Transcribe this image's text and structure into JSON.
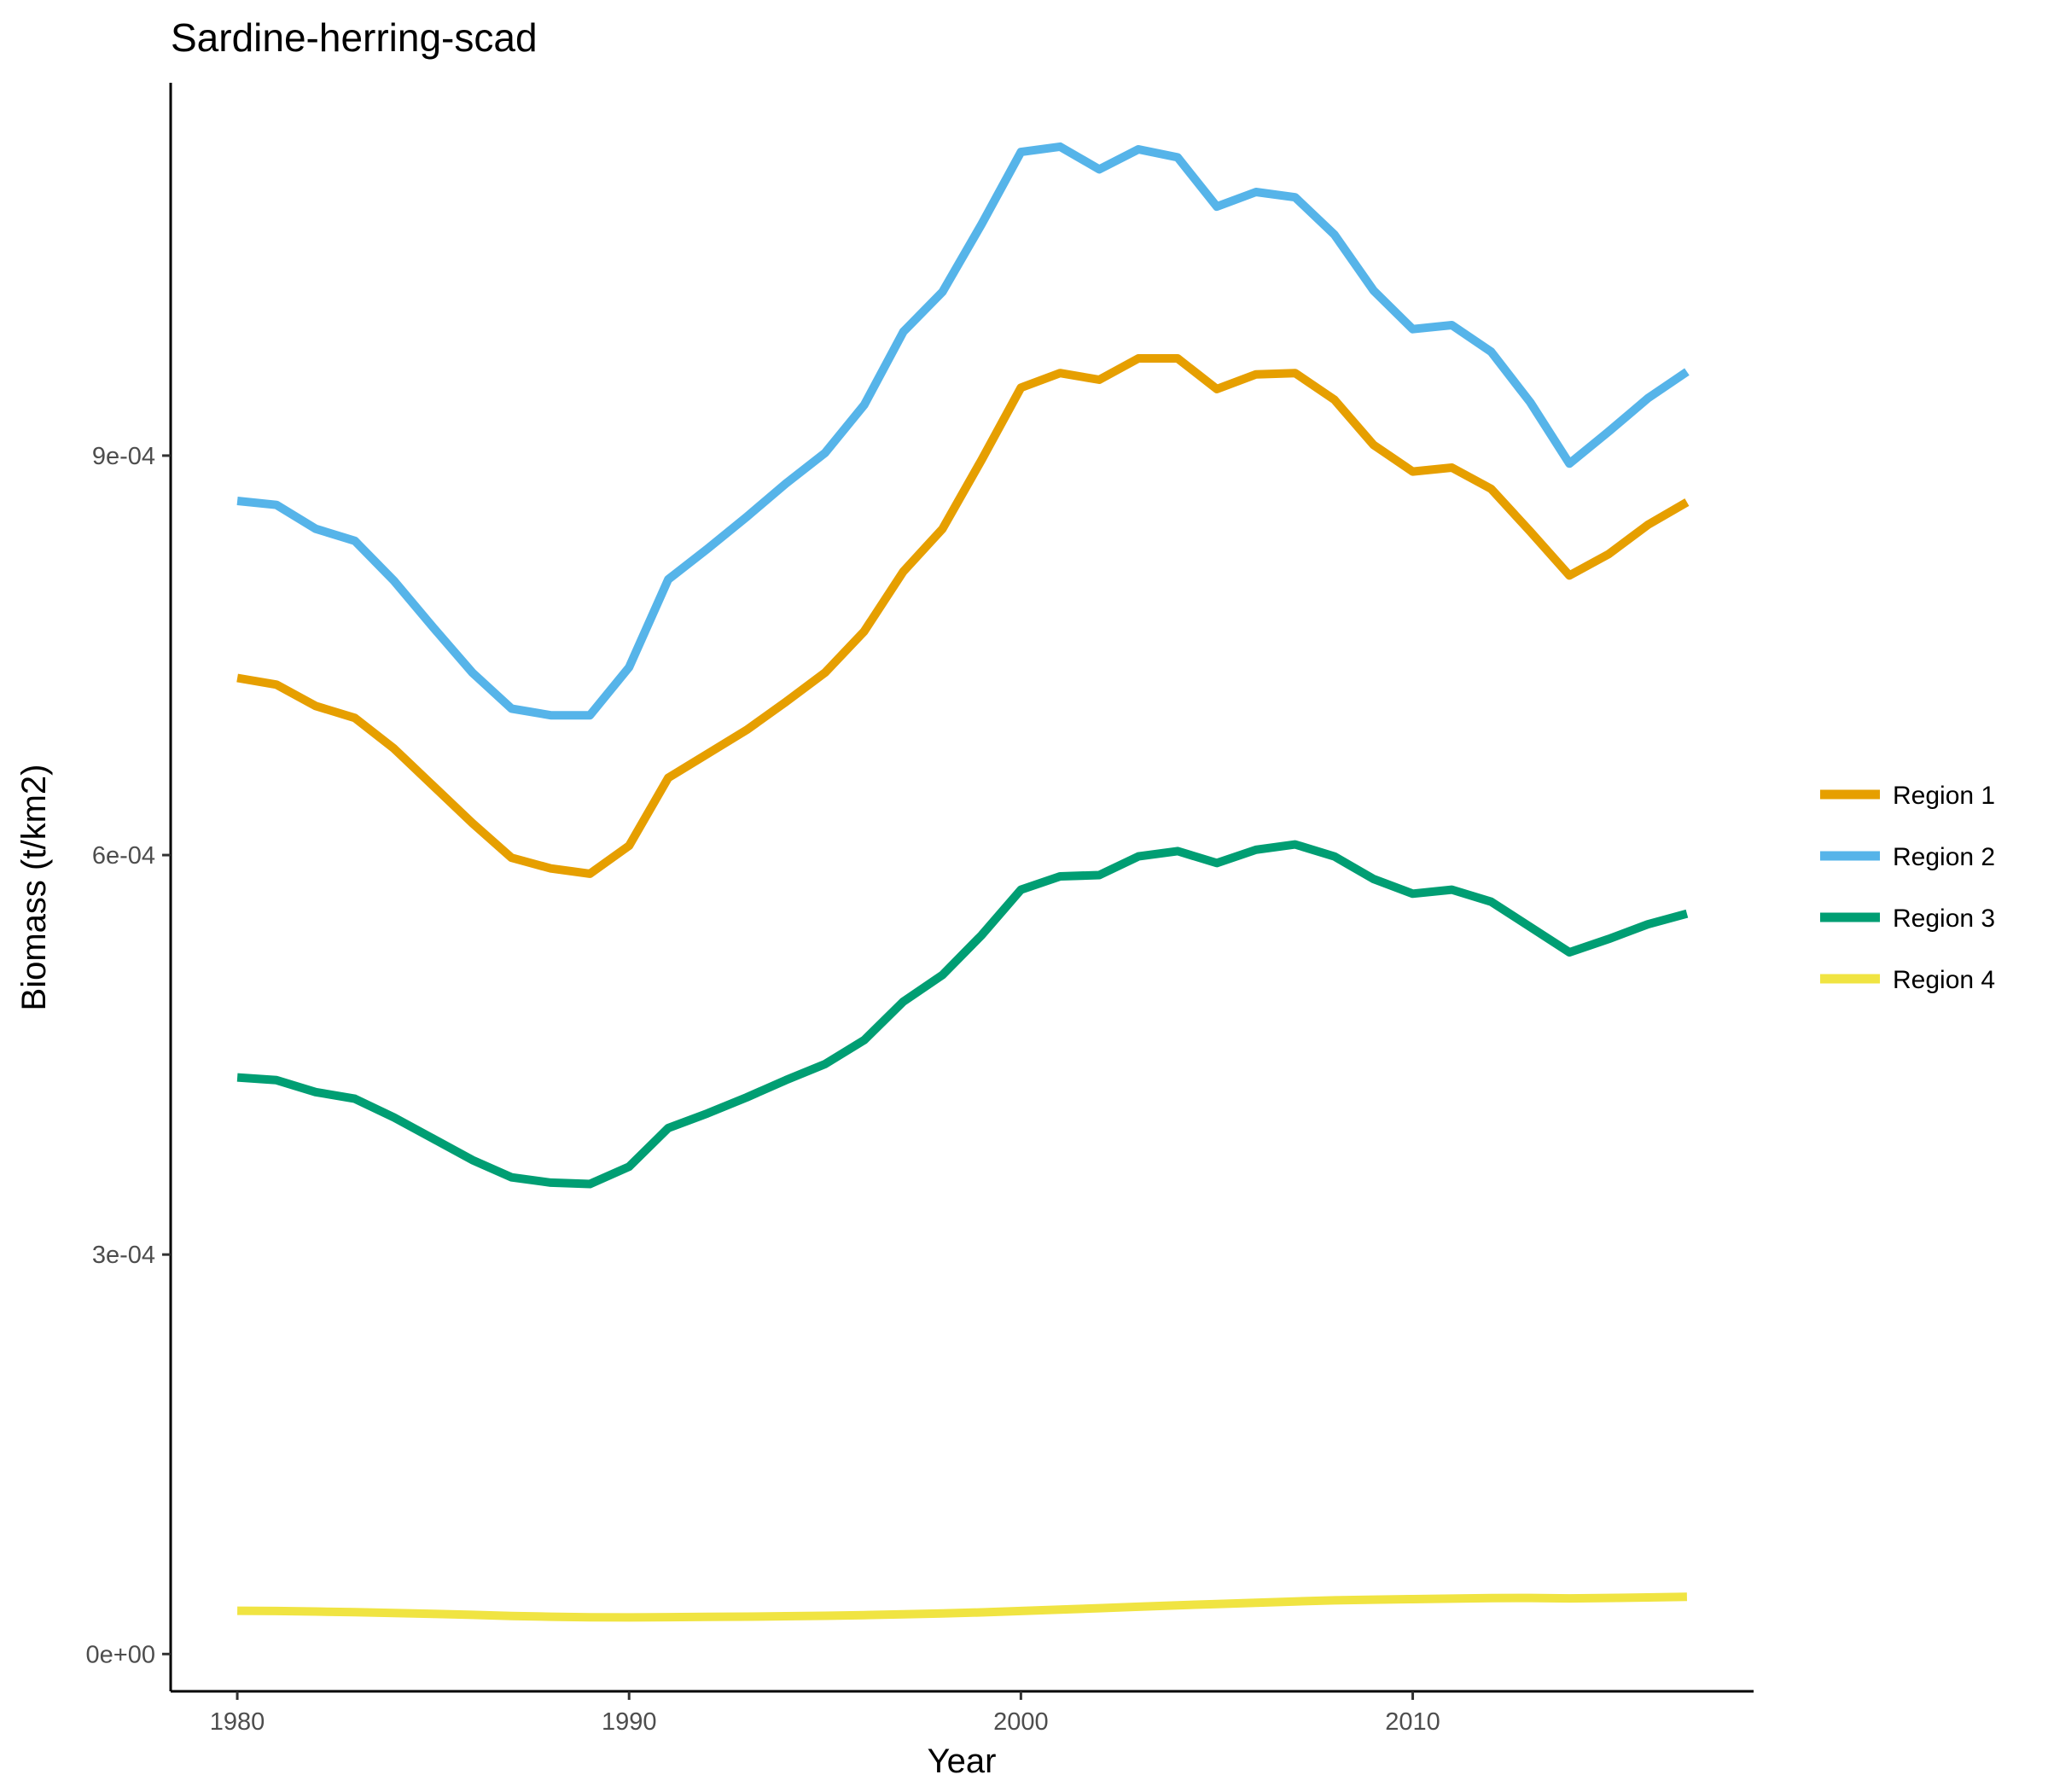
{
  "chart_data": {
    "type": "line",
    "title": "Sardine-herring-scad",
    "xlabel": "Year",
    "ylabel": "Biomass (t/km2)",
    "xlim": [
      1978.3,
      2018.7
    ],
    "ylim": [
      -2.8e-05,
      0.00118
    ],
    "x_ticks": [
      1980,
      1990,
      2000,
      2010
    ],
    "x_tick_labels": [
      "1980",
      "1990",
      "2000",
      "2010"
    ],
    "y_ticks": [
      0,
      0.0003,
      0.0006,
      0.0009
    ],
    "y_tick_labels": [
      "0e+00",
      "3e-04",
      "6e-04",
      "9e-04"
    ],
    "grid": false,
    "legend_position": "right",
    "x": [
      1980,
      1981,
      1982,
      1983,
      1984,
      1985,
      1986,
      1987,
      1988,
      1989,
      1990,
      1991,
      1992,
      1993,
      1994,
      1995,
      1996,
      1997,
      1998,
      1999,
      2000,
      2001,
      2002,
      2003,
      2004,
      2005,
      2006,
      2007,
      2008,
      2009,
      2010,
      2011,
      2012,
      2013,
      2014,
      2015,
      2016,
      2017
    ],
    "series": [
      {
        "name": "Region 1",
        "color": "#E69F00",
        "values": [
          0.000733,
          0.000728,
          0.000712,
          0.000703,
          0.00068,
          0.000652,
          0.000624,
          0.000598,
          0.00059,
          0.000586,
          0.000607,
          0.000658,
          0.000676,
          0.000694,
          0.000715,
          0.000737,
          0.000768,
          0.000813,
          0.000845,
          0.000897,
          0.000951,
          0.000962,
          0.000957,
          0.000973,
          0.000973,
          0.00095,
          0.000961,
          0.000962,
          0.000942,
          0.000908,
          0.000888,
          0.000891,
          0.000875,
          0.000843,
          0.00081,
          0.000826,
          0.000848,
          0.000865
        ]
      },
      {
        "name": "Region 2",
        "color": "#56B4E9",
        "values": [
          0.000866,
          0.000863,
          0.000845,
          0.000836,
          0.000806,
          0.000771,
          0.000737,
          0.00071,
          0.000705,
          0.000705,
          0.000741,
          0.000807,
          0.00083,
          0.000854,
          0.000879,
          0.000902,
          0.000938,
          0.000993,
          0.001023,
          0.001074,
          0.001128,
          0.001132,
          0.001115,
          0.00113,
          0.001124,
          0.001087,
          0.001098,
          0.001094,
          0.001066,
          0.001024,
          0.000995,
          0.000998,
          0.000978,
          0.00094,
          0.000894,
          0.000918,
          0.000943,
          0.000963
        ]
      },
      {
        "name": "Region 3",
        "color": "#009E73",
        "values": [
          0.000433,
          0.000431,
          0.000422,
          0.000417,
          0.000403,
          0.000387,
          0.000371,
          0.000358,
          0.000354,
          0.000353,
          0.000366,
          0.000395,
          0.000406,
          0.000418,
          0.000431,
          0.000443,
          0.000461,
          0.00049,
          0.00051,
          0.00054,
          0.000574,
          0.000584,
          0.000585,
          0.000599,
          0.000603,
          0.000594,
          0.000604,
          0.000608,
          0.000599,
          0.000582,
          0.000571,
          0.000574,
          0.000565,
          0.000546,
          0.000527,
          0.000537,
          0.000548,
          0.000556
        ]
      },
      {
        "name": "Region 4",
        "color": "#F0E442",
        "values": [
          3.25e-05,
          3.23e-05,
          3.19e-05,
          3.14e-05,
          3.08e-05,
          3.01e-05,
          2.94e-05,
          2.86e-05,
          2.8e-05,
          2.76e-05,
          2.75e-05,
          2.77e-05,
          2.79e-05,
          2.81e-05,
          2.84e-05,
          2.87e-05,
          2.92e-05,
          2.98e-05,
          3.05e-05,
          3.13e-05,
          3.23e-05,
          3.34e-05,
          3.44e-05,
          3.55e-05,
          3.66e-05,
          3.75e-05,
          3.85e-05,
          3.95e-05,
          4.03e-05,
          4.08e-05,
          4.12e-05,
          4.16e-05,
          4.2e-05,
          4.21e-05,
          4.18e-05,
          4.21e-05,
          4.25e-05,
          4.3e-05
        ]
      }
    ]
  }
}
